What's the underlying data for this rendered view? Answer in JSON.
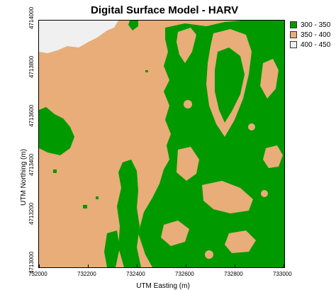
{
  "title": "Digital Surface Model - HARV",
  "x_axis": {
    "label": "UTM Easting (m)",
    "ticks": [
      "732000",
      "732200",
      "732400",
      "732600",
      "732800",
      "733000"
    ]
  },
  "y_axis": {
    "label": "UTM Northing (m)",
    "ticks": [
      "4713000",
      "4713200",
      "4713400",
      "4713600",
      "4713800",
      "4714000"
    ]
  },
  "legend": [
    {
      "label": "300 - 350",
      "color": "#009900"
    },
    {
      "label": "350 - 400",
      "color": "#E8AD78"
    },
    {
      "label": "400 - 450",
      "color": "#F0F0F0"
    }
  ],
  "colors": {
    "low": "#009900",
    "mid": "#E8AD78",
    "high": "#F0F0F0"
  }
}
